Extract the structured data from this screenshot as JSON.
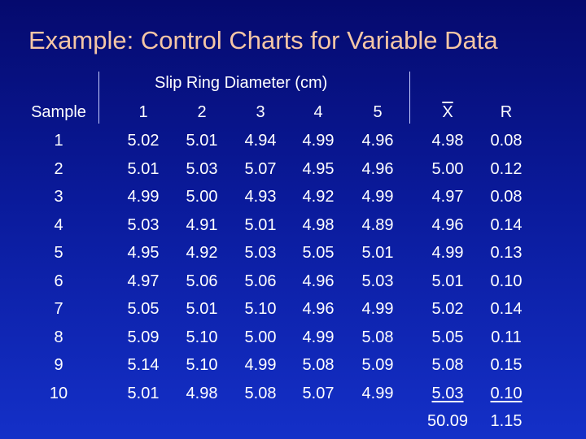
{
  "title": "Example: Control Charts for Variable Data",
  "table": {
    "caption": "Slip Ring Diameter (cm)",
    "headers": [
      "Sample",
      "1",
      "2",
      "3",
      "4",
      "5",
      "X",
      "R"
    ],
    "rows": [
      [
        "1",
        "5.02",
        "5.01",
        "4.94",
        "4.99",
        "4.96",
        "4.98",
        "0.08"
      ],
      [
        "2",
        "5.01",
        "5.03",
        "5.07",
        "4.95",
        "4.96",
        "5.00",
        "0.12"
      ],
      [
        "3",
        "4.99",
        "5.00",
        "4.93",
        "4.92",
        "4.99",
        "4.97",
        "0.08"
      ],
      [
        "4",
        "5.03",
        "4.91",
        "5.01",
        "4.98",
        "4.89",
        "4.96",
        "0.14"
      ],
      [
        "5",
        "4.95",
        "4.92",
        "5.03",
        "5.05",
        "5.01",
        "4.99",
        "0.13"
      ],
      [
        "6",
        "4.97",
        "5.06",
        "5.06",
        "4.96",
        "5.03",
        "5.01",
        "0.10"
      ],
      [
        "7",
        "5.05",
        "5.01",
        "5.10",
        "4.96",
        "4.99",
        "5.02",
        "0.14"
      ],
      [
        "8",
        "5.09",
        "5.10",
        "5.00",
        "4.99",
        "5.08",
        "5.05",
        "0.11"
      ],
      [
        "9",
        "5.14",
        "5.10",
        "4.99",
        "5.08",
        "5.09",
        "5.08",
        "0.15"
      ],
      [
        "10",
        "5.01",
        "4.98",
        "5.08",
        "5.07",
        "4.99",
        "5.03",
        "0.10"
      ]
    ],
    "totals": [
      "50.09",
      "1.15"
    ]
  }
}
